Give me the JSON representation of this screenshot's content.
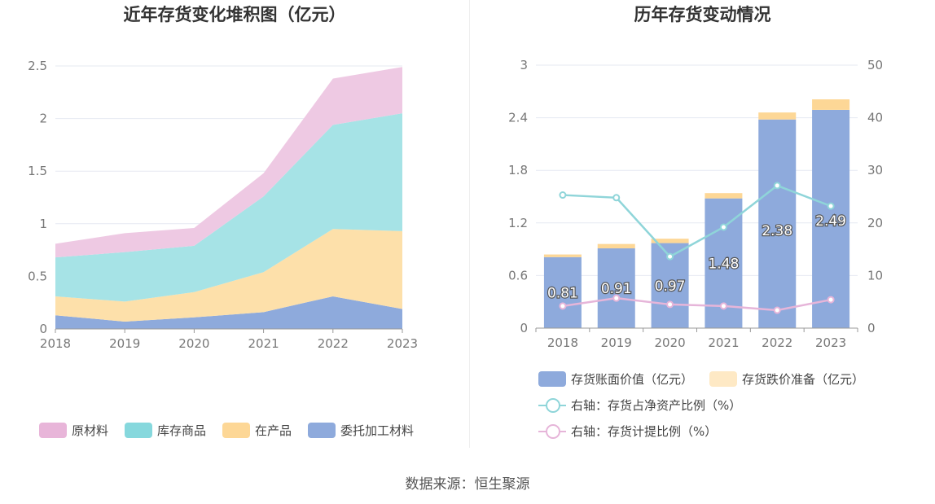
{
  "left_chart": {
    "title": "近年存货变化堆积图（亿元）",
    "chart_data": {
      "type": "area",
      "stacked": true,
      "categories": [
        "2018",
        "2019",
        "2020",
        "2021",
        "2022",
        "2023"
      ],
      "ylim": [
        0,
        2.5
      ],
      "yticks": [
        "0",
        "0.5",
        "1",
        "1.5",
        "2",
        "2.5"
      ],
      "series": [
        {
          "name": "委托加工材料",
          "color": "#8eaadc",
          "values": [
            0.13,
            0.07,
            0.11,
            0.16,
            0.31,
            0.19
          ]
        },
        {
          "name": "在产品",
          "color": "#fde0aa",
          "values": [
            0.18,
            0.19,
            0.24,
            0.38,
            0.64,
            0.74
          ]
        },
        {
          "name": "库存商品",
          "color": "#a6e3e6",
          "values": [
            0.37,
            0.47,
            0.44,
            0.72,
            0.99,
            1.12
          ]
        },
        {
          "name": "原材料",
          "color": "#eec9e3",
          "values": [
            0.13,
            0.18,
            0.17,
            0.22,
            0.44,
            0.44
          ]
        }
      ],
      "legend": [
        "原材料",
        "库存商品",
        "在产品",
        "委托加工材料"
      ],
      "legend_colors": [
        "#e8b5d9",
        "#86d8dd",
        "#fdd796",
        "#8eaadc"
      ],
      "grid": true
    }
  },
  "right_chart": {
    "title": "历年存货变动情况",
    "chart_data": {
      "type": "bar",
      "stacked": true,
      "categories": [
        "2018",
        "2019",
        "2020",
        "2021",
        "2022",
        "2023"
      ],
      "ylim": [
        0,
        3
      ],
      "yticks": [
        "0",
        "0.6",
        "1.2",
        "1.8",
        "2.4",
        "3"
      ],
      "y2lim": [
        0,
        50
      ],
      "y2ticks": [
        "0",
        "10",
        "20",
        "30",
        "40",
        "50"
      ],
      "series": [
        {
          "name": "存货账面价值（亿元）",
          "color": "#8eaadc",
          "values": [
            0.81,
            0.91,
            0.97,
            1.48,
            2.38,
            2.49
          ],
          "labels": [
            "0.81",
            "0.91",
            "0.97",
            "1.48",
            "2.38",
            "2.49"
          ]
        },
        {
          "name": "存货跌价准备（亿元）",
          "color": "#fdd796",
          "values": [
            0.03,
            0.05,
            0.05,
            0.06,
            0.08,
            0.12
          ]
        }
      ],
      "line_series": [
        {
          "name": "右轴：存货占净资产比例（%）",
          "color": "#8fd5d9",
          "values": [
            25.3,
            24.8,
            13.6,
            19.2,
            27.1,
            23.2
          ]
        },
        {
          "name": "右轴：存货计提比例（%）",
          "color": "#e6b5d9",
          "values": [
            4.2,
            5.7,
            4.5,
            4.2,
            3.4,
            5.4
          ]
        }
      ],
      "grid": true
    }
  },
  "source": "数据来源：恒生聚源"
}
